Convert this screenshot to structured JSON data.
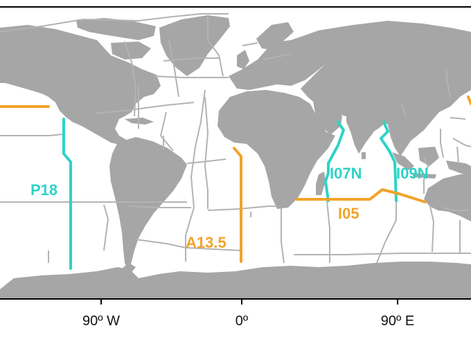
{
  "colors": {
    "land": "#a6a6a6",
    "ocean": "#ffffff",
    "survey_grid": "#b3b3b3",
    "section_orange": "#f2a32a",
    "section_teal": "#2ed3c6",
    "frame": "#000000"
  },
  "sections": {
    "p18": {
      "label": "P18",
      "color": "#2ed3c6"
    },
    "a13_5": {
      "label": "A13.5",
      "color": "#f2a32a"
    },
    "i07n": {
      "label": "I07N",
      "color": "#2ed3c6"
    },
    "i09n": {
      "label": "I09N",
      "color": "#2ed3c6"
    },
    "i05": {
      "label": "I05",
      "color": "#f2a32a"
    },
    "unlabeled_pacific": {
      "color": "#f2a32a"
    }
  },
  "x_axis": {
    "ticks": [
      "90º W",
      "0º",
      "90º E"
    ]
  }
}
